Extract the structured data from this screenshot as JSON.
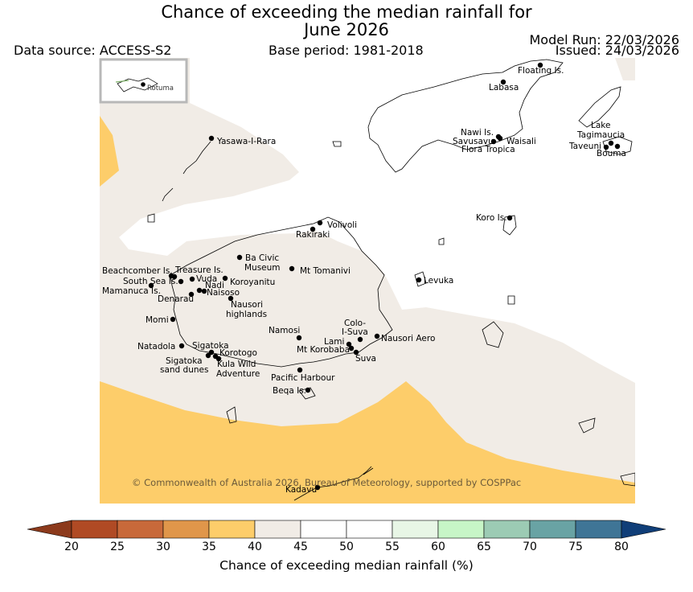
{
  "title_line1": "Chance of exceeding the median rainfall for",
  "title_line2": "June 2026",
  "data_source": "Data source: ACCESS-S2",
  "base_period": "Base period: 1981-2018",
  "model_run": "Model Run: 22/03/2026",
  "issued": "Issued: 24/03/2026",
  "inset_label": "Rotuma",
  "copyright": "© Commonwealth of Australia 2026, Bureau of Meteorology, supported by COSPPac",
  "colorbar": {
    "title": "Chance of exceeding median rainfall (%)",
    "ticks": [
      "20",
      "25",
      "30",
      "35",
      "40",
      "45",
      "50",
      "55",
      "60",
      "65",
      "70",
      "75",
      "80"
    ],
    "colors": {
      "below20": "#8c3a1c",
      "c20_25": "#b04a24",
      "c25_30": "#c8693a",
      "c30_35": "#e0964a",
      "c35_40": "#fdcd6a",
      "c40_45": "#f1ece6",
      "c45_50": "#ffffff",
      "c50_55": "#ffffff",
      "c55_60": "#e8f6e6",
      "c60_65": "#c7f5c7",
      "c65_70": "#9ccbb4",
      "c70_75": "#69a3a4",
      "c75_80": "#3f7596",
      "above80": "#103e78"
    }
  },
  "places": {
    "floating": "Floating Is.",
    "labasa": "Labasa",
    "yasawa": "Yasawa-I-Rara",
    "nawi": "Nawi Is.",
    "savusavu": "Savusavu",
    "waisali": "Waisali",
    "flora": "Flora Tropica",
    "lake1": "Lake",
    "lake2": "Tagimaucia",
    "taveuni": "Taveuni",
    "bouma": "Bouma",
    "koro": "Koro Is.",
    "volivoli": "Volivoli",
    "rakiraki": "Rakiraki",
    "bacivic1": "Ba Civic",
    "bacivic2": "Museum",
    "tomanivi": "Mt Tomanivi",
    "beachcomber": "Beachcomber Is.",
    "treasure": "Treasure Is.",
    "southsea": "South Sea Is.",
    "vuda": "Vuda",
    "koroyanitu": "Koroyanitu",
    "nadi": "Nadi",
    "mamanuca": "Mamanuca Is.",
    "naisoso": "Naisoso",
    "denarau": "Denarau",
    "levuka": "Levuka",
    "nausori_h1": "Nausori",
    "nausori_h2": "highlands",
    "momi": "Momi",
    "colo1": "Colo-",
    "colo2": "I-Suva",
    "namosi": "Namosi",
    "nausori_aero": "Nausori Aero",
    "lami": "Lami",
    "natadola": "Natadola",
    "sigatoka": "Sigatoka",
    "korobaba": "Mt Korobaba",
    "korotogo": "Korotogo",
    "suva": "Suva",
    "sig_dunes1": "Sigatoka",
    "sig_dunes2": "sand dunes",
    "kula1": "Kula Wild",
    "kula2": "Adventure",
    "pacific": "Pacific Harbour",
    "beqa": "Beqa Is.",
    "kadavu": "Kadavu"
  }
}
